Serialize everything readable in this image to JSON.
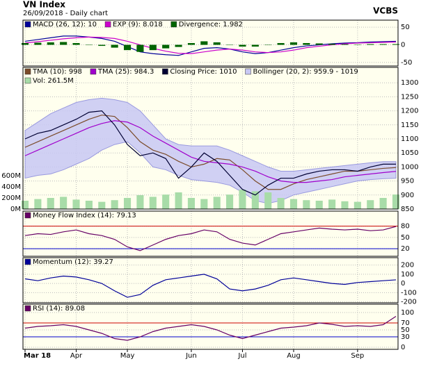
{
  "header": {
    "title": "VN Index",
    "subtitle": "26/09/2018 - Daily chart",
    "source": "VCBS"
  },
  "chart_data": [
    {
      "type": "line",
      "ylim": [
        -60,
        70
      ],
      "yticks": [
        -50,
        0,
        50
      ],
      "grid": true,
      "series": [
        {
          "name": "MACD (26, 12): 10",
          "color": "#000099",
          "values": [
            10,
            15,
            20,
            25,
            25,
            22,
            18,
            10,
            -5,
            -20,
            -25,
            -28,
            -30,
            -20,
            -10,
            -8,
            -12,
            -20,
            -25,
            -22,
            -15,
            -8,
            -3,
            0,
            3,
            5,
            6,
            8,
            9,
            10
          ]
        },
        {
          "name": "EXP (9): 8.018",
          "color": "#cc00cc",
          "values": [
            5,
            9,
            13,
            17,
            20,
            22,
            21,
            18,
            10,
            0,
            -10,
            -18,
            -24,
            -25,
            -20,
            -15,
            -12,
            -15,
            -20,
            -22,
            -20,
            -15,
            -8,
            -4,
            0,
            3,
            5,
            6,
            7,
            8.018
          ]
        },
        {
          "name": "Divergence: 1.982",
          "color": "#006400",
          "type": "bar",
          "values": [
            5,
            6,
            7,
            8,
            5,
            0,
            -3,
            -8,
            -15,
            -20,
            -15,
            -10,
            -6,
            5,
            10,
            7,
            0,
            -5,
            -5,
            0,
            5,
            7,
            5,
            4,
            3,
            2,
            1,
            2,
            2,
            1.982
          ]
        }
      ]
    },
    {
      "type": "line",
      "ylim": [
        850,
        1355
      ],
      "yticks": [
        850,
        900,
        950,
        1000,
        1050,
        1100,
        1150,
        1200,
        1250,
        1300
      ],
      "grid": true,
      "y2lim": [
        0,
        2550
      ],
      "y2ticks": [
        {
          "value": 0,
          "label": "0M"
        },
        {
          "value": 200,
          "label": "200M"
        },
        {
          "value": 400,
          "label": "400M"
        },
        {
          "value": 600,
          "label": "600M"
        }
      ],
      "series": [
        {
          "name": "Bollinger (20, 2): 959.9 - 1019",
          "color": "#8888dd",
          "fill": "#c8c8f4",
          "type": "band",
          "upper": [
            1130,
            1160,
            1190,
            1210,
            1230,
            1240,
            1245,
            1240,
            1230,
            1200,
            1150,
            1100,
            1080,
            1075,
            1075,
            1075,
            1060,
            1040,
            1020,
            1000,
            985,
            985,
            990,
            995,
            1000,
            1005,
            1010,
            1015,
            1019,
            1019
          ],
          "lower": [
            960,
            970,
            975,
            990,
            1010,
            1030,
            1060,
            1080,
            1090,
            1050,
            1000,
            990,
            970,
            955,
            950,
            945,
            935,
            910,
            880,
            870,
            880,
            900,
            910,
            920,
            930,
            940,
            950,
            955,
            958,
            959.9
          ]
        },
        {
          "name": "Vol: 261.5M",
          "color": "#a8dca8",
          "type": "bar",
          "axis": "y2",
          "values": [
            150,
            180,
            200,
            220,
            170,
            150,
            130,
            160,
            200,
            250,
            220,
            260,
            300,
            200,
            180,
            220,
            260,
            350,
            320,
            300,
            200,
            180,
            160,
            150,
            170,
            140,
            130,
            160,
            200,
            261.5
          ]
        },
        {
          "name": "TMA (10): 998",
          "color": "#7b4b2a",
          "values": [
            1070,
            1090,
            1110,
            1130,
            1150,
            1170,
            1185,
            1180,
            1140,
            1090,
            1060,
            1045,
            1020,
            1000,
            1010,
            1030,
            1025,
            990,
            950,
            920,
            920,
            940,
            955,
            965,
            975,
            985,
            985,
            990,
            995,
            998
          ]
        },
        {
          "name": "TMA (25): 984.3",
          "color": "#a000cc",
          "values": [
            1040,
            1060,
            1080,
            1100,
            1120,
            1140,
            1155,
            1165,
            1160,
            1140,
            1110,
            1085,
            1060,
            1035,
            1020,
            1015,
            1010,
            1000,
            985,
            965,
            950,
            945,
            945,
            950,
            955,
            965,
            970,
            975,
            980,
            984.3
          ]
        },
        {
          "name": "Closing Price: 1010",
          "color": "#000033",
          "values": [
            1100,
            1120,
            1130,
            1150,
            1170,
            1195,
            1200,
            1150,
            1080,
            1040,
            1050,
            1030,
            960,
            1000,
            1050,
            1020,
            970,
            920,
            900,
            935,
            960,
            960,
            975,
            985,
            990,
            990,
            985,
            1000,
            1010,
            1010
          ]
        }
      ]
    },
    {
      "type": "line",
      "ylim": [
        0,
        120
      ],
      "yticks": [
        20,
        50,
        80
      ],
      "grid": true,
      "levels": [
        {
          "value": 80,
          "color": "#cc0000"
        },
        {
          "value": 20,
          "color": "#0000cc"
        }
      ],
      "series": [
        {
          "name": "Money Flow Index (14): 79.13",
          "color": "#660066",
          "values": [
            55,
            60,
            58,
            65,
            70,
            60,
            55,
            45,
            25,
            15,
            30,
            45,
            55,
            60,
            70,
            65,
            45,
            35,
            30,
            45,
            60,
            65,
            70,
            75,
            72,
            70,
            72,
            68,
            70,
            79.13
          ]
        }
      ]
    },
    {
      "type": "line",
      "ylim": [
        -210,
        280
      ],
      "yticks": [
        -200,
        -100,
        0,
        100,
        200
      ],
      "grid": true,
      "series": [
        {
          "name": "Momentum (12): 39.27",
          "color": "#000099",
          "values": [
            50,
            30,
            60,
            80,
            70,
            40,
            0,
            -80,
            -150,
            -120,
            -20,
            40,
            60,
            80,
            100,
            50,
            -60,
            -80,
            -60,
            -20,
            40,
            60,
            40,
            20,
            0,
            -10,
            10,
            20,
            30,
            39.27
          ]
        }
      ]
    },
    {
      "type": "line",
      "ylim": [
        -6,
        124
      ],
      "yticks": [
        0,
        30,
        50,
        70,
        100
      ],
      "grid": true,
      "levels": [
        {
          "value": 70,
          "color": "#cc0000"
        },
        {
          "value": 30,
          "color": "#0000cc"
        }
      ],
      "categories": [
        "Mar 18",
        null,
        null,
        null,
        "Apr",
        null,
        null,
        null,
        "May",
        null,
        null,
        null,
        null,
        "Jun",
        null,
        null,
        null,
        "Jul",
        null,
        null,
        null,
        "Aug",
        null,
        null,
        null,
        null,
        "Sep",
        null,
        null,
        null
      ],
      "series": [
        {
          "name": "RSI (14): 89.08",
          "color": "#660066",
          "values": [
            55,
            60,
            62,
            65,
            60,
            50,
            40,
            25,
            20,
            30,
            45,
            55,
            60,
            65,
            60,
            50,
            35,
            25,
            35,
            45,
            55,
            58,
            62,
            70,
            66,
            60,
            62,
            60,
            65,
            89.08
          ]
        }
      ]
    }
  ]
}
